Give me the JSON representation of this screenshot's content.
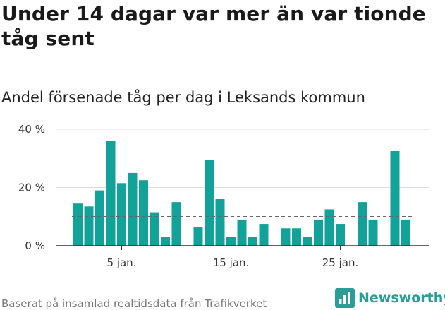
{
  "chart_data": {
    "type": "bar",
    "title": "Under 14 dagar var mer än var tionde tåg sent",
    "subtitle": "Andel försenade tåg per dag i Leksands kommun",
    "xlabel": "",
    "ylabel": "",
    "x_tick_labels": [
      "5 jan.",
      "15 jan.",
      "25 jan."
    ],
    "x_tick_days": [
      5,
      15,
      25
    ],
    "y_tick_labels": [
      "0 %",
      "20 %",
      "40 %"
    ],
    "y_ticks": [
      0,
      20,
      40
    ],
    "ylim": [
      0,
      40
    ],
    "days": [
      1,
      2,
      3,
      4,
      5,
      6,
      7,
      8,
      9,
      10,
      11,
      12,
      13,
      14,
      15,
      16,
      17,
      18,
      19,
      20,
      21,
      22,
      23,
      24,
      25,
      26,
      27,
      28,
      29,
      30,
      31
    ],
    "values": [
      14.5,
      13.5,
      19,
      36,
      21.5,
      25,
      22.5,
      11.5,
      3,
      15,
      null,
      6.5,
      29.5,
      16,
      3,
      9,
      3,
      7.5,
      null,
      6,
      6,
      3,
      9,
      12.5,
      7.5,
      null,
      15,
      9,
      null,
      32.5,
      9
    ],
    "reference_line": {
      "value": 10,
      "style": "dashed"
    },
    "grid": true,
    "bar_color": "#11a39a"
  },
  "footer": {
    "source": "Baserat på insamlad realtidsdata från Trafikverket",
    "brand": "Newsworthy",
    "brand_icon": "newsworthy-logo-icon"
  }
}
